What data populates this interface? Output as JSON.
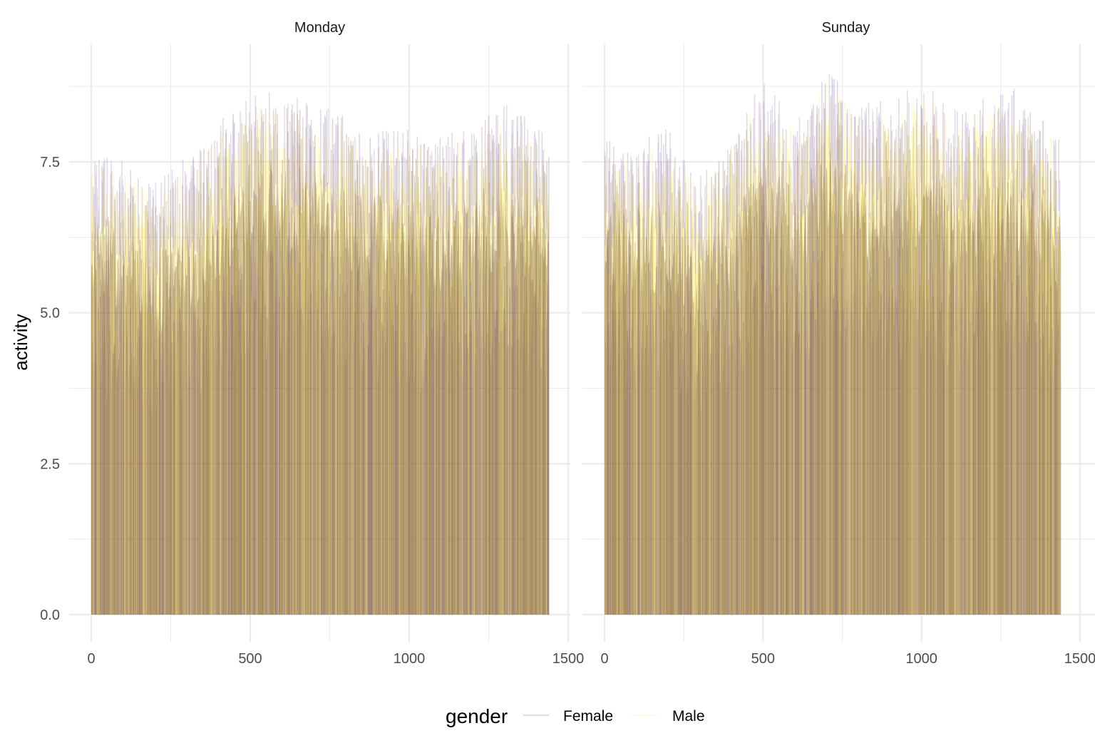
{
  "chart_data": {
    "type": "line",
    "facets": [
      "Monday",
      "Sunday"
    ],
    "xlabel": "",
    "ylabel": "activity",
    "xlim": [
      0,
      1500
    ],
    "ylim": [
      0,
      9
    ],
    "x_ticks": [
      0,
      500,
      1000,
      1500
    ],
    "y_ticks": [
      0,
      2.5,
      5,
      7.5
    ],
    "y_tick_labels": [
      "0.0",
      "2.5",
      "5.0",
      "7.5"
    ],
    "x_tick_labels": [
      "0",
      "500",
      "1000",
      "1500"
    ],
    "grid": true,
    "legend": {
      "title": "gender",
      "position": "bottom",
      "entries": [
        {
          "name": "Female",
          "color": "#440154"
        },
        {
          "name": "Male",
          "color": "#FDE725"
        }
      ]
    },
    "series_summary": {
      "x_range": [
        0,
        1440
      ],
      "description_level": "dense overlapping per-minute activity lines, values ranging 0 to about 8.9",
      "approx_upper_envelope": {
        "Monday": [
          {
            "x": 0,
            "y": 7.5
          },
          {
            "x": 100,
            "y": 7.4
          },
          {
            "x": 200,
            "y": 7.0
          },
          {
            "x": 300,
            "y": 7.5
          },
          {
            "x": 400,
            "y": 8.0
          },
          {
            "x": 500,
            "y": 8.6
          },
          {
            "x": 600,
            "y": 8.5
          },
          {
            "x": 700,
            "y": 8.4
          },
          {
            "x": 800,
            "y": 8.1
          },
          {
            "x": 900,
            "y": 7.9
          },
          {
            "x": 1000,
            "y": 7.9
          },
          {
            "x": 1100,
            "y": 7.8
          },
          {
            "x": 1200,
            "y": 7.9
          },
          {
            "x": 1300,
            "y": 8.4
          },
          {
            "x": 1440,
            "y": 7.8
          }
        ],
        "Sunday": [
          {
            "x": 0,
            "y": 7.7
          },
          {
            "x": 100,
            "y": 7.7
          },
          {
            "x": 200,
            "y": 7.9
          },
          {
            "x": 300,
            "y": 7.1
          },
          {
            "x": 400,
            "y": 7.8
          },
          {
            "x": 500,
            "y": 8.7
          },
          {
            "x": 600,
            "y": 8.0
          },
          {
            "x": 700,
            "y": 8.9
          },
          {
            "x": 800,
            "y": 8.3
          },
          {
            "x": 900,
            "y": 8.5
          },
          {
            "x": 1000,
            "y": 8.7
          },
          {
            "x": 1100,
            "y": 8.2
          },
          {
            "x": 1200,
            "y": 8.4
          },
          {
            "x": 1300,
            "y": 8.6
          },
          {
            "x": 1440,
            "y": 7.7
          }
        ]
      }
    }
  }
}
